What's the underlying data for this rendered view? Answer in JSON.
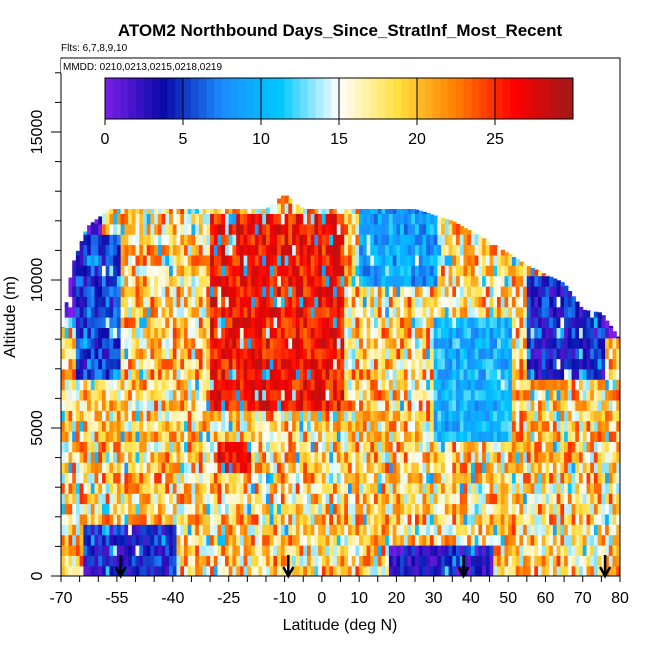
{
  "chart_data": {
    "type": "heatmap",
    "title": "ATOM2 Northbound Days_Since_StratInf_Most_Recent",
    "flights_label": "Flts: 6,7,8,9,10",
    "dates_label": "MMDD: 0210,0213,0215,0218,0219",
    "xlabel": "Latitude (deg N)",
    "ylabel": "Altitude (m)",
    "xlim": [
      -70,
      80
    ],
    "ylim": [
      0,
      17500
    ],
    "x_tick_labels": [
      "-70",
      "-55",
      "-40",
      "-25",
      "-10",
      "0",
      "10",
      "20",
      "30",
      "40",
      "50",
      "60",
      "70",
      "80"
    ],
    "y_tick_labels": [
      "0",
      "5000",
      "10000",
      "15000"
    ],
    "colorbar": {
      "range": [
        0,
        30
      ],
      "tick_labels": [
        "0",
        "5",
        "10",
        "15",
        "20",
        "25"
      ],
      "colors": [
        "#7b1fe8",
        "#0a0aa8",
        "#1c8cff",
        "#00c8ff",
        "#ffffff",
        "#ffe040",
        "#ff7f00",
        "#ff0000",
        "#9c1a1a"
      ]
    },
    "arrow_latitudes": [
      -54,
      -9,
      38,
      76
    ],
    "profile_top_altitude": [
      [
        -70,
        8000
      ],
      [
        -67,
        10500
      ],
      [
        -63,
        11800
      ],
      [
        -57,
        12400
      ],
      [
        -50,
        12400
      ],
      [
        -40,
        12400
      ],
      [
        -30,
        12400
      ],
      [
        -22,
        12400
      ],
      [
        -15,
        12400
      ],
      [
        -10,
        12900
      ],
      [
        -5,
        12400
      ],
      [
        5,
        12400
      ],
      [
        15,
        12400
      ],
      [
        25,
        12400
      ],
      [
        35,
        12000
      ],
      [
        45,
        11300
      ],
      [
        55,
        10500
      ],
      [
        65,
        9900
      ],
      [
        70,
        9000
      ],
      [
        75,
        8900
      ],
      [
        80,
        8000
      ]
    ],
    "field_zones": [
      {
        "lat": [
          -70,
          -60
        ],
        "alt": [
          8500,
          12400
        ],
        "days": 0.5
      },
      {
        "lat": [
          -66,
          -55
        ],
        "alt": [
          6500,
          11500
        ],
        "days": 5
      },
      {
        "lat": [
          -30,
          5
        ],
        "alt": [
          5500,
          12000
        ],
        "days": 26
      },
      {
        "lat": [
          -28,
          -20
        ],
        "alt": [
          3500,
          4500
        ],
        "days": 27
      },
      {
        "lat": [
          10,
          30
        ],
        "alt": [
          9500,
          12300
        ],
        "days": 9
      },
      {
        "lat": [
          62,
          80
        ],
        "alt": [
          8000,
          10500
        ],
        "days": 1
      },
      {
        "lat": [
          55,
          75
        ],
        "alt": [
          6500,
          10000
        ],
        "days": 4
      },
      {
        "lat": [
          -64,
          -40
        ],
        "alt": [
          0,
          1500
        ],
        "days": 4
      },
      {
        "lat": [
          18,
          45
        ],
        "alt": [
          0,
          1000
        ],
        "days": 3
      },
      {
        "lat": [
          30,
          50
        ],
        "alt": [
          4500,
          8500
        ],
        "days": 10
      }
    ]
  }
}
